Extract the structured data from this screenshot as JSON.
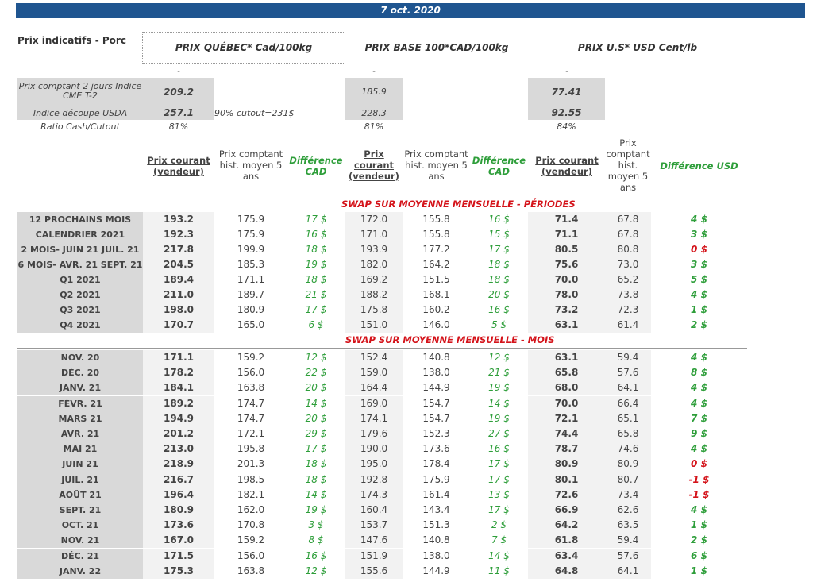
{
  "date": "7 oct. 2020",
  "title": "Prix indicatifs - Porc",
  "headers": {
    "quebec": "PRIX QUÉBEC* Cad/100kg",
    "base": "PRIX BASE 100*CAD/100kg",
    "us": "PRIX U.S* USD Cent/lb"
  },
  "dash": "-",
  "spot": {
    "label": "Prix comptant 2 jours Indice CME T-2",
    "quebec": "209.2",
    "base": "185.9",
    "us": "77.41"
  },
  "cutout": {
    "label": "Indice découpe USDA",
    "quebec": "257.1",
    "note": "90% cutout=231$",
    "base": "228.3",
    "us": "92.55"
  },
  "ratio": {
    "label": "Ratio Cash/Cutout",
    "quebec": "81%",
    "base": "81%",
    "us": "84%"
  },
  "columns": {
    "q_current": "Prix courant (vendeur)",
    "q_hist": "Prix comptant hist. moyen 5 ans",
    "q_diff": "Différence CAD",
    "b_current": "Prix courant (vendeur)",
    "b_hist": "Prix comptant hist. moyen 5 ans",
    "b_diff": "Différence CAD",
    "u_current": "Prix courant (vendeur)",
    "u_hist": "Prix comptant hist. moyen 5 ans",
    "u_diff": "Différence USD"
  },
  "section_periods": "SWAP SUR MOYENNE MENSUELLE - PÉRIODES",
  "section_months": "SWAP SUR MOYENNE MENSUELLE - MOIS",
  "periods": [
    [
      "12 PROCHAINS MOIS",
      "193.2",
      "175.9",
      "17 $",
      "172.0",
      "155.8",
      "16 $",
      "71.4",
      "67.8",
      "4 $"
    ],
    [
      "CALENDRIER 2021",
      "192.3",
      "175.9",
      "16 $",
      "171.0",
      "155.8",
      "15 $",
      "71.1",
      "67.8",
      "3 $"
    ],
    [
      "2 MOIS- JUIN 21 JUIL. 21",
      "217.8",
      "199.9",
      "18 $",
      "193.9",
      "177.2",
      "17 $",
      "80.5",
      "80.8",
      "0 $"
    ],
    [
      "6 MOIS- AVR. 21 SEPT. 21",
      "204.5",
      "185.3",
      "19 $",
      "182.0",
      "164.2",
      "18 $",
      "75.6",
      "73.0",
      "3 $"
    ],
    [
      "Q1 2021",
      "189.4",
      "171.1",
      "18 $",
      "169.2",
      "151.5",
      "18 $",
      "70.0",
      "65.2",
      "5 $"
    ],
    [
      "Q2 2021",
      "211.0",
      "189.7",
      "21 $",
      "188.2",
      "168.1",
      "20 $",
      "78.0",
      "73.8",
      "4 $"
    ],
    [
      "Q3 2021",
      "198.0",
      "180.9",
      "17 $",
      "175.8",
      "160.2",
      "16 $",
      "73.2",
      "72.3",
      "1 $"
    ],
    [
      "Q4 2021",
      "170.7",
      "165.0",
      "6 $",
      "151.0",
      "146.0",
      "5 $",
      "63.1",
      "61.4",
      "2 $"
    ]
  ],
  "months": [
    [
      "NOV. 20",
      "171.1",
      "159.2",
      "12 $",
      "152.4",
      "140.8",
      "12 $",
      "63.1",
      "59.4",
      "4 $"
    ],
    [
      "DÉC. 20",
      "178.2",
      "156.0",
      "22 $",
      "159.0",
      "138.0",
      "21 $",
      "65.8",
      "57.6",
      "8 $"
    ],
    [
      "JANV. 21",
      "184.1",
      "163.8",
      "20 $",
      "164.4",
      "144.9",
      "19 $",
      "68.0",
      "64.1",
      "4 $"
    ],
    [
      "FÉVR. 21",
      "189.2",
      "174.7",
      "14 $",
      "169.0",
      "154.7",
      "14 $",
      "70.0",
      "66.4",
      "4 $"
    ],
    [
      "MARS 21",
      "194.9",
      "174.7",
      "20 $",
      "174.1",
      "154.7",
      "19 $",
      "72.1",
      "65.1",
      "7 $"
    ],
    [
      "AVR. 21",
      "201.2",
      "172.1",
      "29 $",
      "179.6",
      "152.3",
      "27 $",
      "74.4",
      "65.8",
      "9 $"
    ],
    [
      "MAI 21",
      "213.0",
      "195.8",
      "17 $",
      "190.0",
      "173.6",
      "16 $",
      "78.7",
      "74.6",
      "4 $"
    ],
    [
      "JUIN 21",
      "218.9",
      "201.3",
      "18 $",
      "195.0",
      "178.4",
      "17 $",
      "80.9",
      "80.9",
      "0 $"
    ],
    [
      "JUIL. 21",
      "216.7",
      "198.5",
      "18 $",
      "192.8",
      "175.9",
      "17 $",
      "80.1",
      "80.7",
      "-1 $"
    ],
    [
      "AOÛT 21",
      "196.4",
      "182.1",
      "14 $",
      "174.3",
      "161.4",
      "13 $",
      "72.6",
      "73.4",
      "-1 $"
    ],
    [
      "SEPT. 21",
      "180.9",
      "162.0",
      "19 $",
      "160.4",
      "143.4",
      "17 $",
      "66.9",
      "62.6",
      "4 $"
    ],
    [
      "OCT. 21",
      "173.6",
      "170.8",
      "3 $",
      "153.7",
      "151.3",
      "2 $",
      "64.2",
      "63.5",
      "1 $"
    ],
    [
      "NOV. 21",
      "167.0",
      "159.2",
      "8 $",
      "147.6",
      "140.8",
      "7 $",
      "61.8",
      "59.4",
      "2 $"
    ],
    [
      "DÉC. 21",
      "171.5",
      "156.0",
      "16 $",
      "151.9",
      "138.0",
      "14 $",
      "63.4",
      "57.6",
      "6 $"
    ],
    [
      "JANV. 22",
      "175.3",
      "163.8",
      "12 $",
      "155.6",
      "144.9",
      "11 $",
      "64.8",
      "64.1",
      "1 $"
    ]
  ]
}
